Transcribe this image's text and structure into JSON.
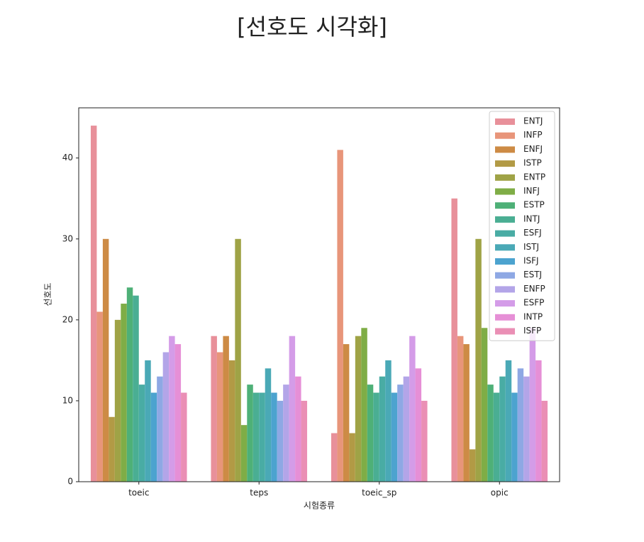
{
  "chart_data": {
    "type": "bar",
    "title": "[선호도 시각화]",
    "x_label": "시험종류",
    "y_label": "선호도",
    "categories": [
      "toeic",
      "teps",
      "toeic_sp",
      "opic"
    ],
    "series": [
      {
        "name": "ENTJ",
        "color": "#e8909a",
        "values": [
          44,
          18,
          6,
          35
        ]
      },
      {
        "name": "INFP",
        "color": "#e8957a",
        "values": [
          21,
          16,
          41,
          18
        ]
      },
      {
        "name": "ENFJ",
        "color": "#cd8b45",
        "values": [
          30,
          18,
          17,
          17
        ]
      },
      {
        "name": "ISTP",
        "color": "#b29a45",
        "values": [
          8,
          15,
          6,
          4
        ]
      },
      {
        "name": "ENTP",
        "color": "#9fa346",
        "values": [
          20,
          30,
          18,
          30
        ]
      },
      {
        "name": "INFJ",
        "color": "#7fad46",
        "values": [
          22,
          7,
          19,
          19
        ]
      },
      {
        "name": "ESTP",
        "color": "#4eb077",
        "values": [
          24,
          12,
          12,
          12
        ]
      },
      {
        "name": "INTJ",
        "color": "#4aae93",
        "values": [
          23,
          11,
          11,
          11
        ]
      },
      {
        "name": "ESFJ",
        "color": "#49aca4",
        "values": [
          12,
          11,
          13,
          13
        ]
      },
      {
        "name": "ISTJ",
        "color": "#4aa9b6",
        "values": [
          15,
          14,
          15,
          15
        ]
      },
      {
        "name": "ISFJ",
        "color": "#4ca3cf",
        "values": [
          11,
          11,
          11,
          11
        ]
      },
      {
        "name": "ESTJ",
        "color": "#8ea8e4",
        "values": [
          13,
          10,
          12,
          14
        ]
      },
      {
        "name": "ENFP",
        "color": "#b3a5e8",
        "values": [
          16,
          12,
          13,
          13
        ]
      },
      {
        "name": "ESFP",
        "color": "#d49ce8",
        "values": [
          18,
          18,
          18,
          19
        ]
      },
      {
        "name": "INTP",
        "color": "#e68fd6",
        "values": [
          17,
          13,
          14,
          15
        ]
      },
      {
        "name": "ISFP",
        "color": "#ea8fb5",
        "values": [
          11,
          10,
          10,
          10
        ]
      }
    ],
    "ylim": [
      0,
      46.2
    ],
    "yticks": [
      0,
      10,
      20,
      30,
      40
    ],
    "legend": "upper right"
  }
}
